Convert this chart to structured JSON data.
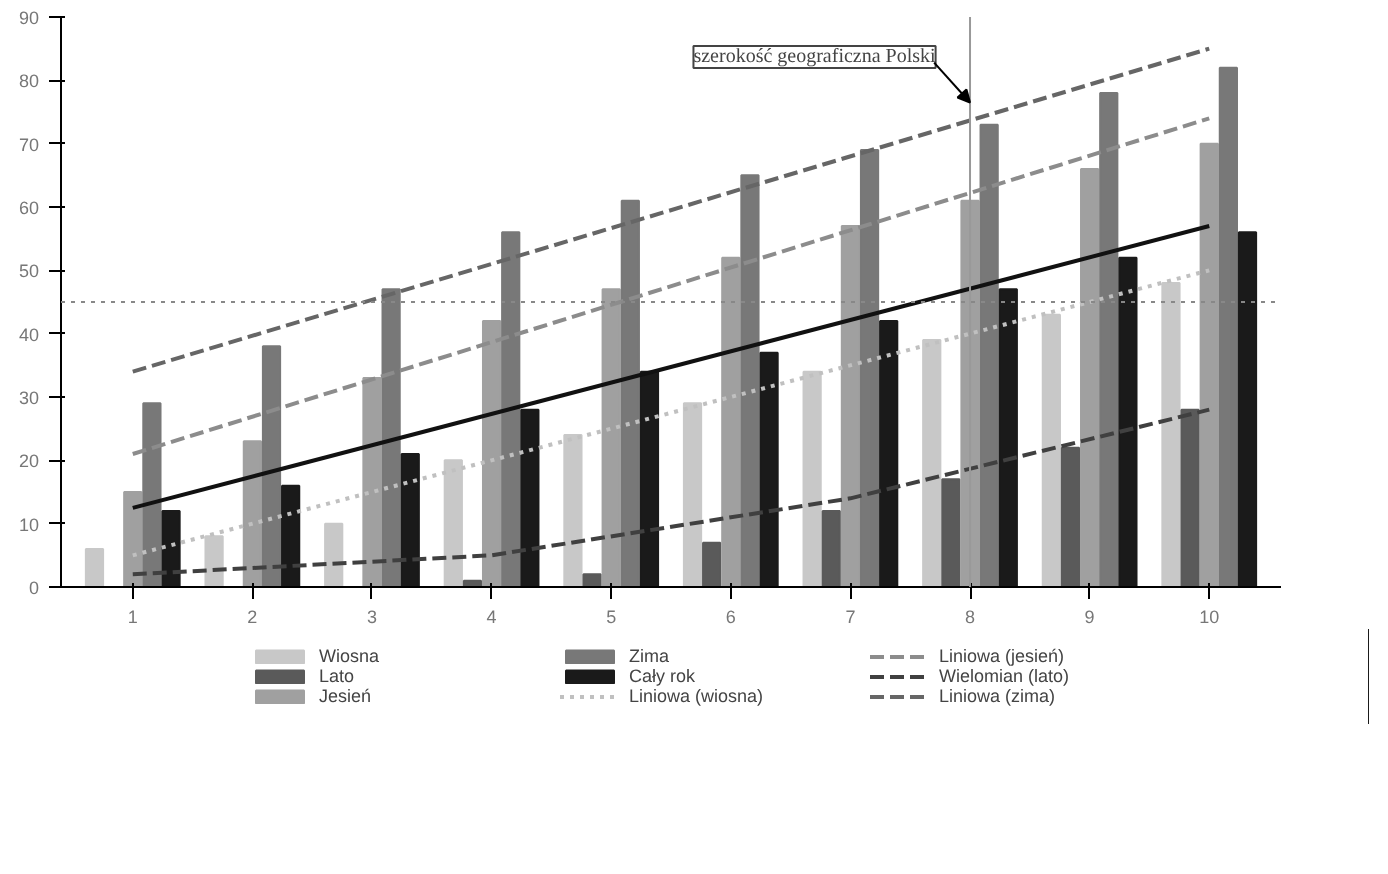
{
  "chart_data": {
    "type": "bar",
    "categories": [
      "1",
      "2",
      "3",
      "4",
      "5",
      "6",
      "7",
      "8",
      "9",
      "10"
    ],
    "ylim": [
      0,
      90
    ],
    "yticks": [
      0,
      10,
      20,
      30,
      40,
      50,
      60,
      70,
      80,
      90
    ],
    "grid": false,
    "legend": "bottom",
    "series": [
      {
        "name": "Wiosna",
        "color": "#c8c8c8",
        "values": [
          6,
          8,
          10,
          20,
          24,
          29,
          34,
          39,
          43,
          48
        ]
      },
      {
        "name": "Lato",
        "color": "#5a5a5a",
        "values": [
          0,
          0,
          0,
          1,
          2,
          7,
          12,
          17,
          22,
          28
        ]
      },
      {
        "name": "Jesień",
        "color": "#a0a0a0",
        "values": [
          15,
          23,
          33,
          42,
          47,
          52,
          57,
          61,
          66,
          70
        ]
      },
      {
        "name": "Zima",
        "color": "#787878",
        "values": [
          29,
          38,
          47,
          56,
          61,
          65,
          69,
          73,
          78,
          82
        ]
      },
      {
        "name": "Cały rok",
        "color": "#1a1a1a",
        "values": [
          12,
          16,
          21,
          28,
          34,
          37,
          42,
          47,
          52,
          56
        ]
      },
      {
        "name": "Liniowa (wiosna)",
        "type": "line",
        "line_style": "dotted",
        "color": "#c0c0c0",
        "x": [
          "1",
          "10"
        ],
        "values": [
          5,
          50
        ]
      },
      {
        "name": "Liniowa (jesień)",
        "type": "line",
        "line_style": "dashed",
        "color": "#8c8c8c",
        "x": [
          "1",
          "10"
        ],
        "values": [
          21,
          74
        ]
      },
      {
        "name": "Wielomian (lato)",
        "type": "line",
        "line_style": "dashed",
        "color": "#404040",
        "x": [
          "1",
          "4",
          "7",
          "10"
        ],
        "values": [
          2,
          5,
          14,
          28
        ]
      },
      {
        "name": "Liniowa (zima)",
        "type": "line",
        "line_style": "dashed",
        "color": "#666666",
        "x": [
          "1",
          "10"
        ],
        "values": [
          34,
          85
        ]
      },
      {
        "type": "line",
        "line_style": "solid",
        "color": "#111111",
        "x": [
          "1",
          "10"
        ],
        "values": [
          12.5,
          57
        ]
      }
    ],
    "ref_lines": [
      {
        "axis": "y",
        "value": 45,
        "color": "#888888",
        "line_style": "dotted"
      },
      {
        "axis": "x",
        "value": "8",
        "color": "#999999",
        "line_style": "solid",
        "label": "szerokość geograficzna Polski"
      }
    ]
  }
}
